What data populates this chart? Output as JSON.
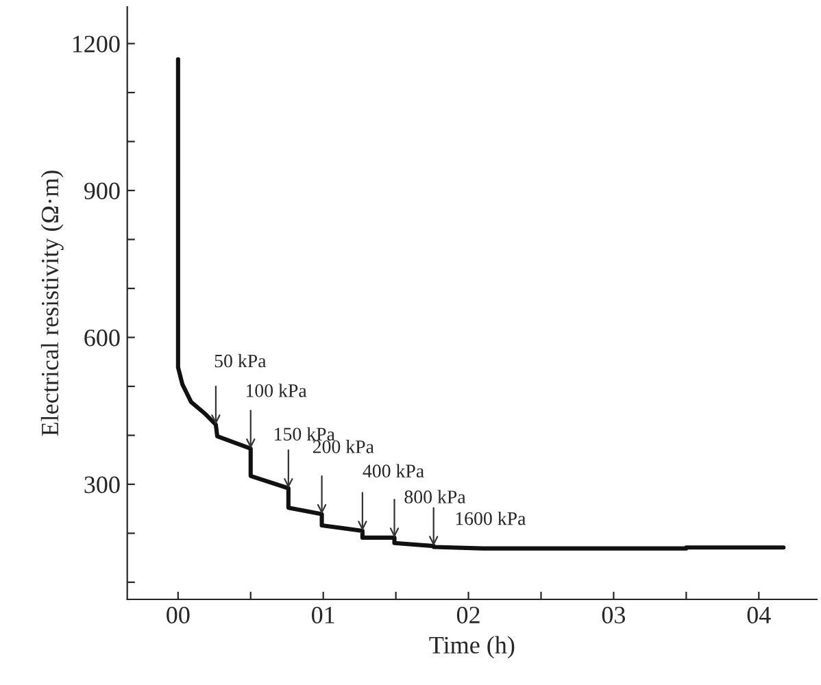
{
  "chart_data": {
    "type": "line",
    "xlabel": "Time (h)",
    "ylabel": "Electrical resistivity (Ω·m)",
    "series": [
      {
        "color": "#111111",
        "x": [
          0,
          0,
          0.03,
          0.09,
          0.19,
          0.26,
          0.27,
          0.5,
          0.5,
          0.76,
          0.76,
          0.99,
          0.99,
          1.27,
          1.27,
          1.49,
          1.49,
          1.76,
          1.76,
          2.1,
          3.5,
          3.5,
          4.17
        ],
        "values": [
          1168,
          539,
          504,
          468,
          443,
          422,
          398,
          373,
          317,
          292,
          252,
          239,
          216,
          205,
          191,
          191,
          180,
          174,
          172,
          169,
          169,
          171,
          171
        ]
      }
    ],
    "xlim": [
      -0.35,
      4.4
    ],
    "xticks": [
      {
        "value": 0,
        "label": "00"
      },
      {
        "value": 0.5,
        "label": null
      },
      {
        "value": 1,
        "label": "01"
      },
      {
        "value": 1.5,
        "label": null
      },
      {
        "value": 2,
        "label": "02"
      },
      {
        "value": 2.5,
        "label": null
      },
      {
        "value": 3,
        "label": "03"
      },
      {
        "value": 3.5,
        "label": null
      },
      {
        "value": 4,
        "label": "04"
      }
    ],
    "ylim": [
      65,
      1275
    ],
    "yticks": [
      {
        "value": 100,
        "label": null
      },
      {
        "value": 200,
        "label": null
      },
      300,
      {
        "value": 400,
        "label": null
      },
      {
        "value": 500,
        "label": null
      },
      600,
      {
        "value": 700,
        "label": null
      },
      {
        "value": 800,
        "label": null
      },
      900,
      {
        "value": 1000,
        "label": null
      },
      {
        "value": 1100,
        "label": null
      },
      1200
    ],
    "annotations": [
      {
        "text": "50 kPa",
        "x": 0.26,
        "y": 422
      },
      {
        "text": "100 kPa",
        "x": 0.5,
        "y": 373
      },
      {
        "text": "150 kPa",
        "x": 0.76,
        "y": 292
      },
      {
        "text": "200 kPa",
        "x": 0.99,
        "y": 239
      },
      {
        "text": "400 kPa",
        "x": 1.27,
        "y": 205
      },
      {
        "text": "800 kPa",
        "x": 1.49,
        "y": 191
      },
      {
        "text": "1600 kPa",
        "x": 1.76,
        "y": 174
      }
    ],
    "grid": false,
    "legend": false,
    "marker": "none",
    "line_style": "solid"
  }
}
